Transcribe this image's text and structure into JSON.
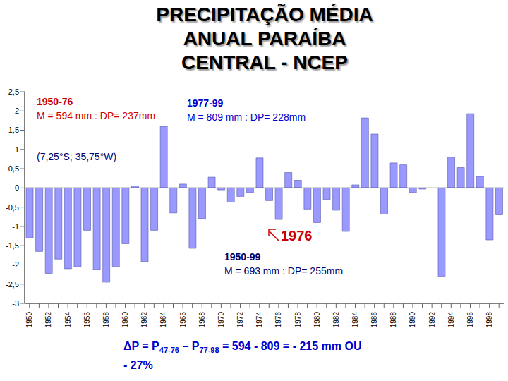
{
  "chart_data": {
    "type": "bar",
    "title": "PRECIPITAÇÃO MÉDIA\nANUAL PARAÍBA\nCENTRAL - NCEP",
    "categories": [
      "1950",
      null,
      "1952",
      null,
      "1954",
      null,
      "1956",
      null,
      "1958",
      null,
      "1960",
      null,
      "1962",
      null,
      "1964",
      null,
      "1966",
      null,
      "1968",
      null,
      "1970",
      null,
      "1972",
      null,
      "1974",
      null,
      "1976",
      null,
      "1978",
      null,
      "1980",
      null,
      "1982",
      null,
      "1984",
      null,
      "1986",
      null,
      "1988",
      null,
      "1990",
      null,
      "1992",
      null,
      "1994",
      null,
      "1996",
      null,
      "1998",
      null
    ],
    "values": [
      -1.3,
      -1.65,
      -2.22,
      -1.85,
      -2.1,
      -2.05,
      -1.1,
      -2.12,
      -2.45,
      -2.05,
      -1.45,
      0.05,
      -1.92,
      -1.1,
      1.6,
      -0.65,
      0.1,
      -1.57,
      -0.8,
      0.28,
      -0.05,
      -0.37,
      -0.22,
      -0.12,
      0.78,
      -0.33,
      -0.82,
      0.4,
      0.2,
      -0.55,
      -0.9,
      -0.3,
      -0.58,
      -1.13,
      0.08,
      1.82,
      1.4,
      -0.68,
      0.65,
      0.6,
      -0.12,
      -0.03,
      0,
      -2.3,
      0.8,
      0.53,
      1.93,
      0.3,
      -1.35,
      -0.7
    ],
    "color": "#9999ff",
    "ylim": [
      -3,
      2.5
    ],
    "yticks": [
      {
        "value": -3,
        "label": "-3"
      },
      {
        "value": -2.5,
        "label": "-2,5"
      },
      -2,
      {
        "value": -1.5,
        "label": "-1,5"
      },
      -1,
      {
        "value": -0.5,
        "label": "-0,5"
      },
      0,
      {
        "value": 0.5,
        "label": "0,5"
      },
      1,
      {
        "value": 1.5,
        "label": "1,5"
      },
      2,
      {
        "value": 2.5,
        "label": "2,5"
      }
    ],
    "grid": false,
    "annotations": [
      "1950-76",
      "M =  594 mm : DP= 237mm",
      "1977-99",
      "M =  809 mm : DP= 228mm",
      "(7,25°S; 35,75°W)",
      "1976",
      "1950-99",
      "M =  693 mm : DP= 255mm"
    ],
    "footnote": [
      "ΔP = P",
      "47-76",
      " –  P",
      "77-98",
      " = 594 - 809 = - 215 mm OU\n- 27%"
    ]
  }
}
